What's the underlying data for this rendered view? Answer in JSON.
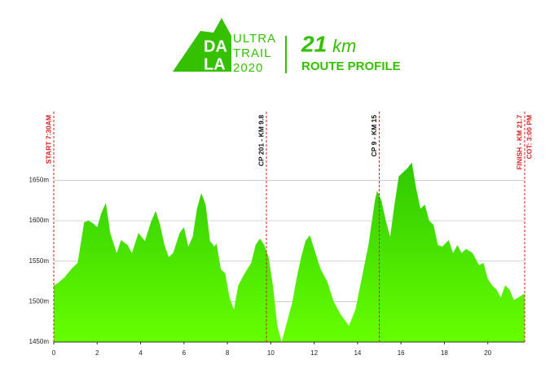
{
  "header": {
    "logo_letters": [
      "DA",
      "LA"
    ],
    "logo_words": [
      "ULTRA",
      "TRAIL",
      "2020"
    ],
    "distance": "21",
    "unit": "km",
    "subtitle": "ROUTE PROFILE"
  },
  "chart_data": {
    "type": "area",
    "x": [
      0,
      0.2,
      0.5,
      0.8,
      1.1,
      1.4,
      1.6,
      1.8,
      2.0,
      2.2,
      2.4,
      2.6,
      2.9,
      3.1,
      3.4,
      3.6,
      3.9,
      4.2,
      4.5,
      4.7,
      4.9,
      5.1,
      5.3,
      5.5,
      5.8,
      6.0,
      6.2,
      6.4,
      6.6,
      6.8,
      7.0,
      7.2,
      7.4,
      7.5,
      7.7,
      7.9,
      8.1,
      8.3,
      8.5,
      8.8,
      9.1,
      9.3,
      9.5,
      9.7,
      9.9,
      10.1,
      10.3,
      10.5,
      10.7,
      11.0,
      11.2,
      11.4,
      11.6,
      11.8,
      12.0,
      12.3,
      12.6,
      12.9,
      13.2,
      13.6,
      13.9,
      14.2,
      14.5,
      14.8,
      14.9,
      15.1,
      15.3,
      15.5,
      15.7,
      15.9,
      16.1,
      16.3,
      16.5,
      16.7,
      16.9,
      17.1,
      17.3,
      17.5,
      17.7,
      17.9,
      18.2,
      18.4,
      18.6,
      18.8,
      19.0,
      19.3,
      19.6,
      19.8,
      20.0,
      20.2,
      20.4,
      20.6,
      20.8,
      21.0,
      21.2,
      21.4,
      21.7
    ],
    "values": [
      1520,
      1523,
      1530,
      1540,
      1548,
      1598,
      1600,
      1597,
      1592,
      1610,
      1622,
      1585,
      1560,
      1576,
      1570,
      1560,
      1585,
      1575,
      1600,
      1612,
      1595,
      1570,
      1555,
      1560,
      1585,
      1592,
      1568,
      1580,
      1615,
      1634,
      1620,
      1575,
      1568,
      1572,
      1540,
      1535,
      1505,
      1490,
      1520,
      1535,
      1548,
      1570,
      1578,
      1570,
      1555,
      1520,
      1470,
      1450,
      1470,
      1500,
      1530,
      1555,
      1575,
      1582,
      1565,
      1540,
      1525,
      1500,
      1485,
      1470,
      1490,
      1530,
      1570,
      1625,
      1637,
      1625,
      1600,
      1580,
      1620,
      1655,
      1660,
      1665,
      1672,
      1640,
      1615,
      1620,
      1600,
      1595,
      1570,
      1568,
      1576,
      1560,
      1570,
      1560,
      1565,
      1560,
      1545,
      1548,
      1528,
      1520,
      1515,
      1505,
      1520,
      1515,
      1502,
      1505,
      1510
    ],
    "xlim": [
      0,
      21.7
    ],
    "ylim": [
      1450,
      1735
    ],
    "xticks": [
      0,
      2,
      4,
      6,
      8,
      10,
      12,
      14,
      16,
      18,
      20
    ],
    "yticks": [
      {
        "value": 1450,
        "label": "1450m"
      },
      {
        "value": 1500,
        "label": "1500m"
      },
      {
        "value": 1550,
        "label": "1550m"
      },
      {
        "value": 1600,
        "label": "1600m"
      },
      {
        "value": 1650,
        "label": "1650m"
      }
    ],
    "grid": true,
    "color_top": "#2ec800",
    "color_bottom": "#66ff00",
    "annotations": [
      {
        "x": 0,
        "labels": [
          "START 7:30AM"
        ],
        "color": "#d42020"
      },
      {
        "x": 9.8,
        "labels": [
          "CP 201 - KM 9.8"
        ],
        "color": "#111111"
      },
      {
        "x": 15,
        "labels": [
          "CP 9 - KM 15"
        ],
        "color": "#111111"
      },
      {
        "x": 21.7,
        "labels": [
          "FINISH - KM 21.7",
          "COT: 3:00 PM"
        ],
        "color": "#d42020"
      }
    ]
  }
}
